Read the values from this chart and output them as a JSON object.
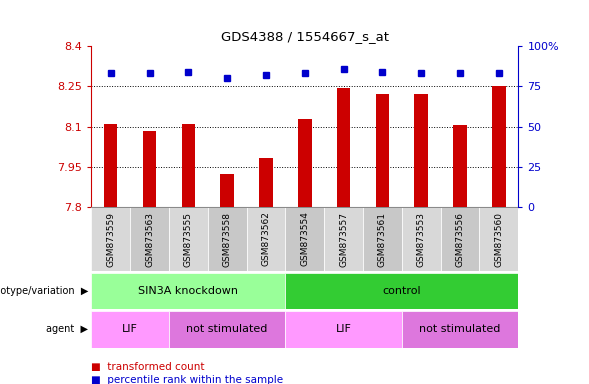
{
  "title": "GDS4388 / 1554667_s_at",
  "samples": [
    "GSM873559",
    "GSM873563",
    "GSM873555",
    "GSM873558",
    "GSM873562",
    "GSM873554",
    "GSM873557",
    "GSM873561",
    "GSM873553",
    "GSM873556",
    "GSM873560"
  ],
  "bar_values": [
    8.11,
    8.085,
    8.11,
    7.925,
    7.985,
    8.13,
    8.245,
    8.22,
    8.22,
    8.105,
    8.25
  ],
  "percentile_values": [
    83,
    83,
    84,
    80,
    82,
    83,
    86,
    84,
    83,
    83,
    83
  ],
  "bar_color": "#cc0000",
  "percentile_color": "#0000cc",
  "ylim_left": [
    7.8,
    8.4
  ],
  "ylim_right": [
    0,
    100
  ],
  "yticks_left": [
    7.8,
    7.95,
    8.1,
    8.25,
    8.4
  ],
  "ytick_labels_left": [
    "7.8",
    "7.95",
    "8.1",
    "8.25",
    "8.4"
  ],
  "yticks_right": [
    0,
    25,
    50,
    75,
    100
  ],
  "ytick_labels_right": [
    "0",
    "25",
    "50",
    "75",
    "100%"
  ],
  "hlines": [
    7.95,
    8.1,
    8.25
  ],
  "sin3a_color": "#99ff99",
  "control_color": "#33cc33",
  "lif_color": "#ff99ff",
  "notstim_color": "#dd77dd",
  "sample_box_colors": [
    "#d8d8d8",
    "#c8c8c8"
  ],
  "bar_width": 0.35,
  "background_color": "#ffffff"
}
